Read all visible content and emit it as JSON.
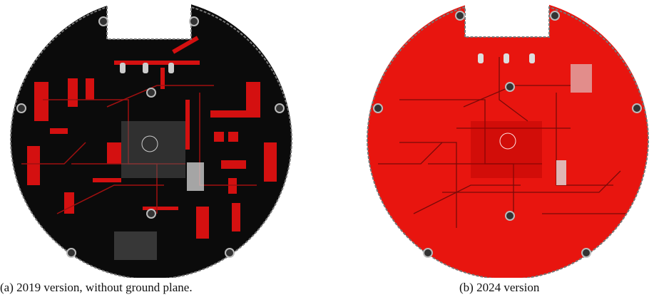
{
  "figure": {
    "subfigures": [
      {
        "caption": "(a) 2019 version, without ground plane."
      },
      {
        "caption": "(b) 2024 version"
      }
    ]
  }
}
